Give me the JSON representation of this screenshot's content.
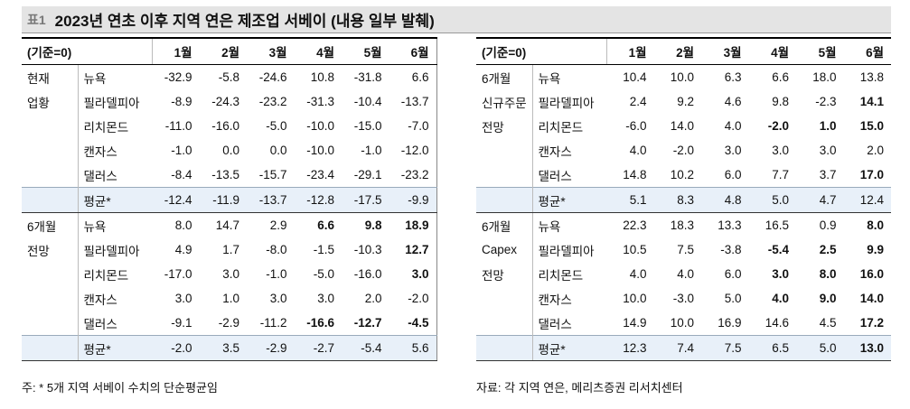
{
  "title": {
    "tag": "표1",
    "text": "2023년 연초 이후 지역 연은 제조업 서베이 (내용 일부 발췌)"
  },
  "tables": [
    {
      "corner": "(기준=0)",
      "columns": [
        "1월",
        "2월",
        "3월",
        "4월",
        "5월",
        "6월"
      ],
      "groups": [
        {
          "label": [
            "현재",
            "업황"
          ],
          "rows": [
            {
              "region": "뉴욕",
              "values": [
                "-32.9",
                "-5.8",
                "-24.6",
                "10.8",
                "-31.8",
                "6.6"
              ],
              "bold": [
                false,
                false,
                false,
                false,
                false,
                false
              ]
            },
            {
              "region": "필라델피아",
              "values": [
                "-8.9",
                "-24.3",
                "-23.2",
                "-31.3",
                "-10.4",
                "-13.7"
              ],
              "bold": [
                false,
                false,
                false,
                false,
                false,
                false
              ]
            },
            {
              "region": "리치몬드",
              "values": [
                "-11.0",
                "-16.0",
                "-5.0",
                "-10.0",
                "-15.0",
                "-7.0"
              ],
              "bold": [
                false,
                false,
                false,
                false,
                false,
                false
              ]
            },
            {
              "region": "캔자스",
              "values": [
                "-1.0",
                "0.0",
                "0.0",
                "-10.0",
                "-1.0",
                "-12.0"
              ],
              "bold": [
                false,
                false,
                false,
                false,
                false,
                false
              ]
            },
            {
              "region": "댈러스",
              "values": [
                "-8.4",
                "-13.5",
                "-15.7",
                "-23.4",
                "-29.1",
                "-23.2"
              ],
              "bold": [
                false,
                false,
                false,
                false,
                false,
                false
              ]
            }
          ],
          "average": {
            "label": "평균*",
            "values": [
              "-12.4",
              "-11.9",
              "-13.7",
              "-12.8",
              "-17.5",
              "-9.9"
            ],
            "bold": [
              false,
              false,
              false,
              false,
              false,
              false
            ]
          }
        },
        {
          "label": [
            "6개월",
            "전망"
          ],
          "rows": [
            {
              "region": "뉴욕",
              "values": [
                "8.0",
                "14.7",
                "2.9",
                "6.6",
                "9.8",
                "18.9"
              ],
              "bold": [
                false,
                false,
                false,
                true,
                true,
                true
              ]
            },
            {
              "region": "필라델피아",
              "values": [
                "4.9",
                "1.7",
                "-8.0",
                "-1.5",
                "-10.3",
                "12.7"
              ],
              "bold": [
                false,
                false,
                false,
                false,
                false,
                true
              ]
            },
            {
              "region": "리치몬드",
              "values": [
                "-17.0",
                "3.0",
                "-1.0",
                "-5.0",
                "-16.0",
                "3.0"
              ],
              "bold": [
                false,
                false,
                false,
                false,
                false,
                true
              ]
            },
            {
              "region": "캔자스",
              "values": [
                "3.0",
                "1.0",
                "3.0",
                "3.0",
                "2.0",
                "-2.0"
              ],
              "bold": [
                false,
                false,
                false,
                false,
                false,
                false
              ]
            },
            {
              "region": "댈러스",
              "values": [
                "-9.1",
                "-2.9",
                "-11.2",
                "-16.6",
                "-12.7",
                "-4.5"
              ],
              "bold": [
                false,
                false,
                false,
                true,
                true,
                true
              ]
            }
          ],
          "average": {
            "label": "평균*",
            "values": [
              "-2.0",
              "3.5",
              "-2.9",
              "-2.7",
              "-5.4",
              "5.6"
            ],
            "bold": [
              false,
              false,
              false,
              false,
              false,
              false
            ]
          }
        }
      ]
    },
    {
      "corner": "(기준=0)",
      "columns": [
        "1월",
        "2월",
        "3월",
        "4월",
        "5월",
        "6월"
      ],
      "groups": [
        {
          "label": [
            "6개월",
            "신규주문",
            "전망"
          ],
          "rows": [
            {
              "region": "뉴욕",
              "values": [
                "10.4",
                "10.0",
                "6.3",
                "6.6",
                "18.0",
                "13.8"
              ],
              "bold": [
                false,
                false,
                false,
                false,
                false,
                false
              ]
            },
            {
              "region": "필라델피아",
              "values": [
                "2.4",
                "9.2",
                "4.6",
                "9.8",
                "-2.3",
                "14.1"
              ],
              "bold": [
                false,
                false,
                false,
                false,
                false,
                true
              ]
            },
            {
              "region": "리치몬드",
              "values": [
                "-6.0",
                "14.0",
                "4.0",
                "-2.0",
                "1.0",
                "15.0"
              ],
              "bold": [
                false,
                false,
                false,
                true,
                true,
                true
              ]
            },
            {
              "region": "캔자스",
              "values": [
                "4.0",
                "-2.0",
                "3.0",
                "3.0",
                "3.0",
                "2.0"
              ],
              "bold": [
                false,
                false,
                false,
                false,
                false,
                false
              ]
            },
            {
              "region": "댈러스",
              "values": [
                "14.8",
                "10.2",
                "6.0",
                "7.7",
                "3.7",
                "17.0"
              ],
              "bold": [
                false,
                false,
                false,
                false,
                false,
                true
              ]
            }
          ],
          "average": {
            "label": "평균*",
            "values": [
              "5.1",
              "8.3",
              "4.8",
              "5.0",
              "4.7",
              "12.4"
            ],
            "bold": [
              false,
              false,
              false,
              false,
              false,
              false
            ]
          }
        },
        {
          "label": [
            "6개월",
            "Capex",
            "전망"
          ],
          "rows": [
            {
              "region": "뉴욕",
              "values": [
                "22.3",
                "18.3",
                "13.3",
                "16.5",
                "0.9",
                "8.0"
              ],
              "bold": [
                false,
                false,
                false,
                false,
                false,
                true
              ]
            },
            {
              "region": "필라델피아",
              "values": [
                "10.5",
                "7.5",
                "-3.8",
                "-5.4",
                "2.5",
                "9.9"
              ],
              "bold": [
                false,
                false,
                false,
                true,
                true,
                true
              ]
            },
            {
              "region": "리치몬드",
              "values": [
                "4.0",
                "4.0",
                "6.0",
                "3.0",
                "8.0",
                "16.0"
              ],
              "bold": [
                false,
                false,
                false,
                true,
                true,
                true
              ]
            },
            {
              "region": "캔자스",
              "values": [
                "10.0",
                "-3.0",
                "5.0",
                "4.0",
                "9.0",
                "14.0"
              ],
              "bold": [
                false,
                false,
                false,
                true,
                true,
                true
              ]
            },
            {
              "region": "댈러스",
              "values": [
                "14.9",
                "10.0",
                "16.9",
                "14.6",
                "4.5",
                "17.2"
              ],
              "bold": [
                false,
                false,
                false,
                false,
                false,
                true
              ]
            }
          ],
          "average": {
            "label": "평균*",
            "values": [
              "12.3",
              "7.4",
              "7.5",
              "6.5",
              "5.0",
              "13.0"
            ],
            "bold": [
              false,
              false,
              false,
              false,
              false,
              true
            ]
          }
        }
      ]
    }
  ],
  "notes": [
    "주: * 5개 지역 서베이 수치의 단순평균임",
    "자료: 각 지역 연은, 메리츠증권 리서치센터"
  ]
}
